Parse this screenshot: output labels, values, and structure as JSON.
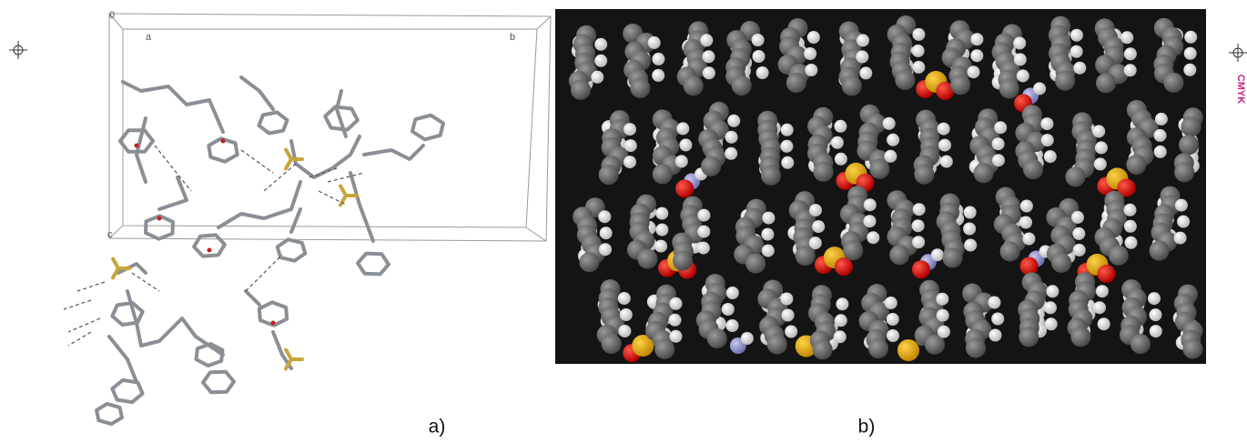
{
  "figure": {
    "panel_a": {
      "label": "a)",
      "cell_labels": {
        "origin": "0",
        "a": "a",
        "b": "b",
        "c": "c"
      }
    },
    "panel_b": {
      "label": "b)"
    }
  },
  "print_mark": "CMYK"
}
